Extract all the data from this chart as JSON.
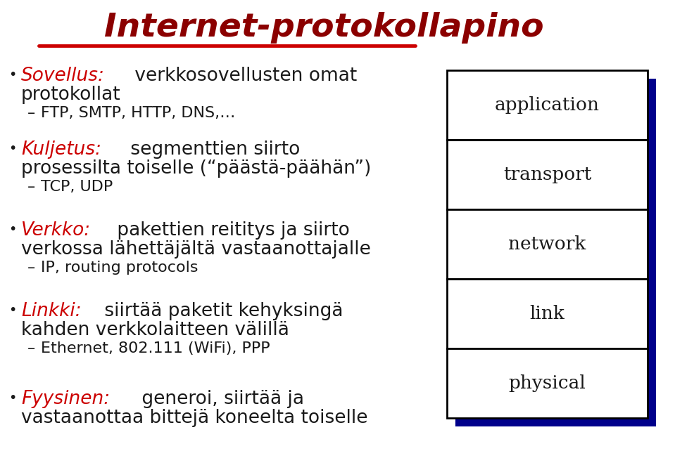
{
  "title": "Internet-protokollapino",
  "title_color": "#8B0000",
  "title_fontsize": 34,
  "background_color": "#FFFFFF",
  "underline_color": "#CC0000",
  "bullet_color": "#1a1a1a",
  "text_color": "#1a1a1a",
  "red_color": "#CC0000",
  "gray_color": "#999999",
  "bullet_items": [
    {
      "label": "Sovellus:",
      "line1": " verkkosovellusten omat",
      "line2": "protokollat",
      "sub": "FTP, SMTP, HTTP, DNS,…",
      "sub_gray": false
    },
    {
      "label": "Kuljetus:",
      "line1": " segmenttien siirto",
      "line2": "prosessilta toiselle (“päästä-päähän”)",
      "sub": "TCP, UDP",
      "sub_gray": false
    },
    {
      "label": "Verkko:",
      "line1": " pakettien reititys ja siirto",
      "line2": "verkossa lähettäjältä vastaanottajalle",
      "sub": "IP, routing protocols",
      "sub_gray": false
    },
    {
      "label": "Linkki:",
      "line1": " siirtää paketit kehyksingä",
      "line2": "kahden verkkolaitteen välillä",
      "sub": "Ethernet, 802.111 (WiFi), PPP",
      "sub_gray": false
    },
    {
      "label": "Fyysinen:",
      "line1": " generoi, siirtää ja",
      "line2": "vastaanottaa bittejä koneelta toiselle",
      "sub": null,
      "sub_gray": false
    }
  ],
  "stack_labels": [
    "application",
    "transport",
    "network",
    "link",
    "physical"
  ],
  "stack_box_color": "#000000",
  "stack_fill": "#FFFFFF",
  "stack_shadow_color": "#00008B",
  "main_fontsize": 19,
  "sub_fontsize": 16
}
